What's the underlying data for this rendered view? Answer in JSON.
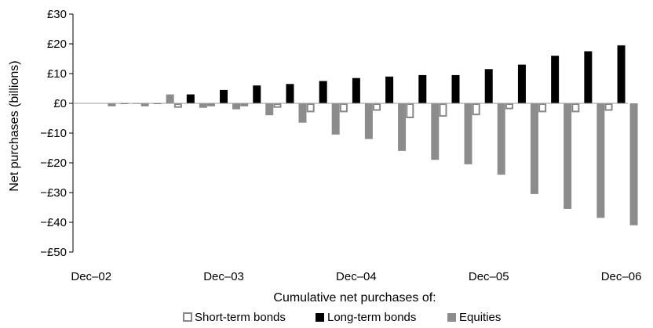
{
  "chart_data": {
    "type": "bar",
    "ylabel": "Net purchases (billions)",
    "xlabel": "Cumulative net purchases of:",
    "ylim": [
      -50,
      30
    ],
    "y_ticks": [
      30,
      20,
      10,
      0,
      -10,
      -20,
      -30,
      -40,
      -50
    ],
    "y_tick_labels": [
      "£30",
      "£20",
      "£10",
      "£0",
      "−£10",
      "−£20",
      "−£30",
      "−£40",
      "−£50"
    ],
    "x_tick_labels": [
      "Dec–02",
      "Dec–03",
      "Dec–04",
      "Dec–05",
      "Dec–06"
    ],
    "x_tick_label_positions": [
      0,
      4,
      8,
      12,
      16
    ],
    "categories": [
      "Dec-02",
      "Mar-03",
      "Jun-03",
      "Sep-03",
      "Dec-03",
      "Mar-04",
      "Jun-04",
      "Sep-04",
      "Dec-04",
      "Mar-05",
      "Jun-05",
      "Sep-05",
      "Dec-05",
      "Mar-06",
      "Jun-06",
      "Sep-06",
      "Dec-06"
    ],
    "series": [
      {
        "name": "Short-term bonds",
        "style": "outline",
        "color": "#888888",
        "values": [
          null,
          -1,
          -1,
          -1.5,
          -1,
          -1,
          -1.5,
          -3,
          -3,
          -2.5,
          -5,
          -4.5,
          -4,
          -2,
          -3,
          -3,
          -2.5
        ]
      },
      {
        "name": "Long-term bonds",
        "style": "solid",
        "color": "#000000",
        "values": [
          null,
          0,
          0,
          3,
          4.5,
          6,
          6.5,
          7.5,
          8.5,
          9,
          9.5,
          9.5,
          11.5,
          13,
          16,
          17.5,
          19.5
        ]
      },
      {
        "name": "Equities",
        "style": "solid",
        "color": "#8c8c8c",
        "values": [
          null,
          0,
          3,
          -1.5,
          -2,
          -4,
          -6.5,
          -10.5,
          -12,
          -16,
          -19,
          -20.5,
          -24,
          -30.5,
          -35.5,
          -38.5,
          -41
        ]
      }
    ],
    "legend_position": "bottom",
    "grid": false
  }
}
